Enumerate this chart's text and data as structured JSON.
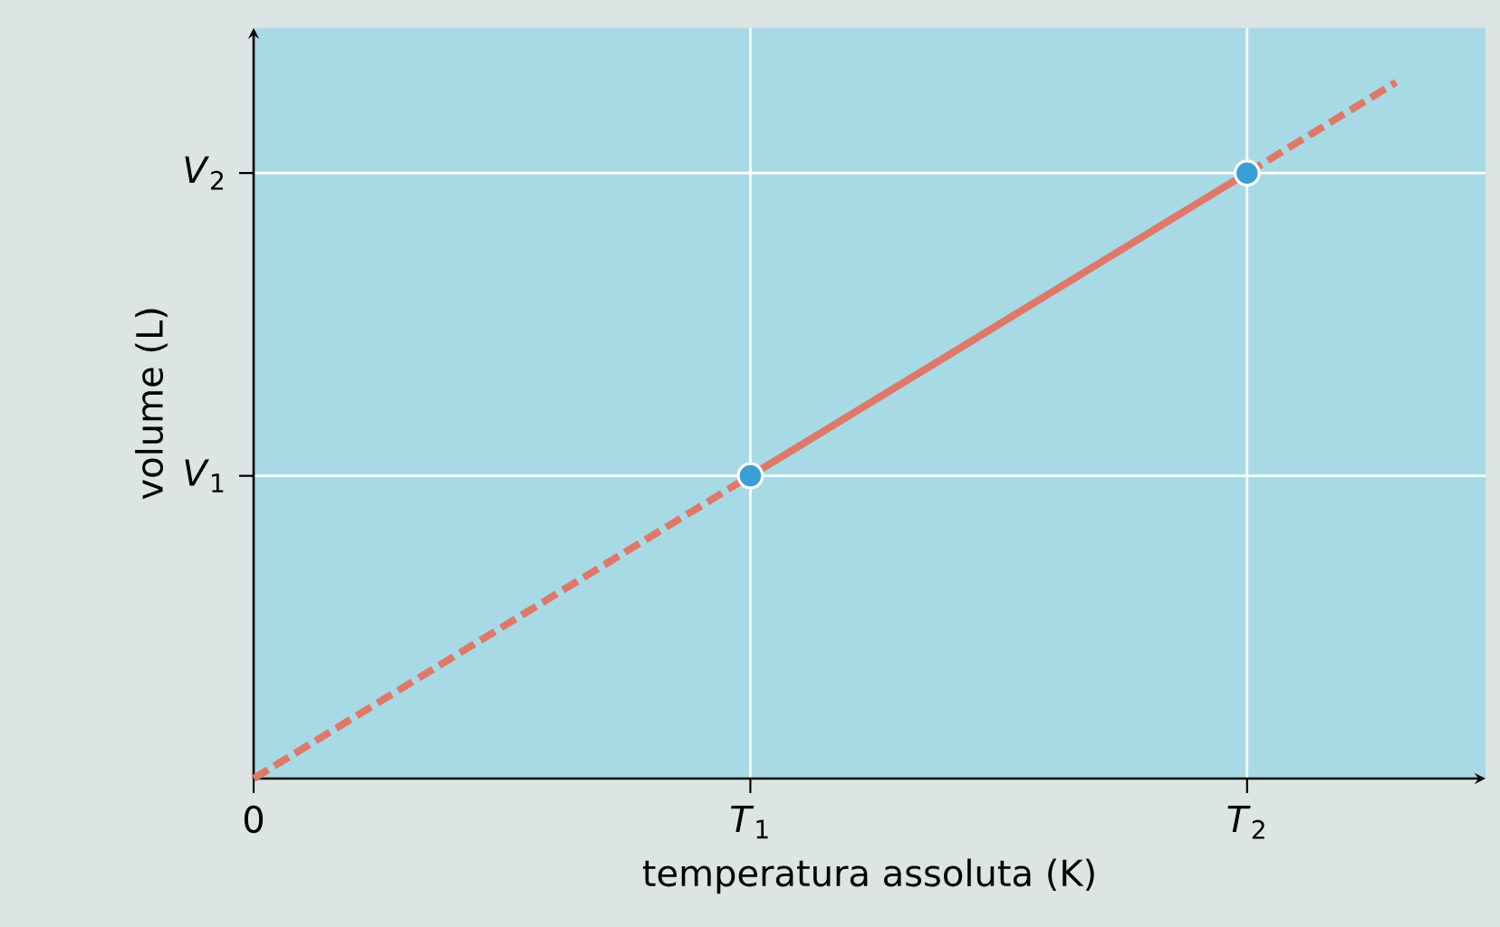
{
  "chart_data": {
    "type": "line",
    "xlabel": "temperatura assoluta (K)",
    "ylabel": "volume (L)",
    "xlim": [
      0,
      2.48
    ],
    "ylim": [
      0,
      2.48
    ],
    "xticks": [
      0,
      {
        "value": 1,
        "label": "*T*$_{1}$"
      },
      {
        "value": 2,
        "label": "*T*$_{2}$"
      }
    ],
    "yticks": [
      {
        "value": 1,
        "label": "*V*$_{1}$"
      },
      {
        "value": 2,
        "label": "*V*$_{2}$"
      }
    ],
    "grid": true,
    "series": [
      {
        "type": "scatter",
        "x": [
          1,
          2
        ],
        "values": [
          1,
          2
        ],
        "color": "#3a9fd6",
        "marker": "circle"
      },
      {
        "x": [
          0,
          1
        ],
        "values": [
          0,
          1
        ],
        "color": "#e07868",
        "line_style": "dashed",
        "marker": "none"
      },
      {
        "x": [
          1,
          2
        ],
        "values": [
          1,
          2
        ],
        "color": "#e07868",
        "line_style": "solid",
        "marker": "none"
      },
      {
        "x": [
          2,
          2.3
        ],
        "values": [
          2,
          2.3
        ],
        "color": "#e07868",
        "line_style": "dashed",
        "marker": "none"
      }
    ]
  }
}
